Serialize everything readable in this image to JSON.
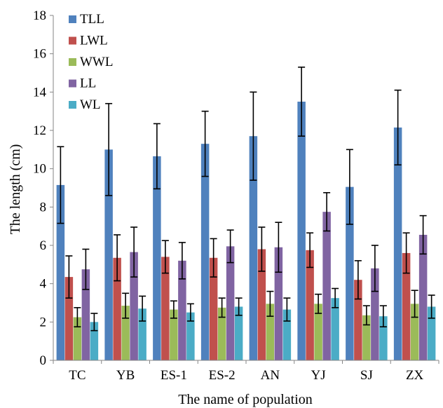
{
  "chart_data": {
    "type": "bar",
    "xlabel": "The name of population",
    "ylabel": "The length (cm)",
    "ylim": [
      0,
      18
    ],
    "yticks": [
      "0",
      "2",
      "4",
      "6",
      "8",
      "10",
      "12",
      "14",
      "16",
      "18"
    ],
    "grid": false,
    "legend_position": "top-left",
    "categories": [
      "TC",
      "YB",
      "ES-1",
      "ES-2",
      "AN",
      "YJ",
      "SJ",
      "ZX"
    ],
    "series": [
      {
        "name": "TLL",
        "color": "#4f81bd",
        "values": [
          9.15,
          11.0,
          10.65,
          11.3,
          11.7,
          13.5,
          9.05,
          12.15
        ],
        "errors": [
          2.0,
          2.4,
          1.7,
          1.7,
          2.3,
          1.8,
          1.95,
          1.95
        ]
      },
      {
        "name": "LWL",
        "color": "#c0504d",
        "values": [
          4.35,
          5.35,
          5.4,
          5.35,
          5.8,
          5.75,
          4.2,
          5.6
        ],
        "errors": [
          1.1,
          1.2,
          0.85,
          1.0,
          1.15,
          0.9,
          1.0,
          1.05
        ]
      },
      {
        "name": "WWL",
        "color": "#9bbb59",
        "values": [
          2.25,
          2.85,
          2.65,
          2.75,
          2.95,
          2.95,
          2.35,
          2.95
        ],
        "errors": [
          0.5,
          0.65,
          0.45,
          0.5,
          0.65,
          0.5,
          0.5,
          0.7
        ]
      },
      {
        "name": "LL",
        "color": "#8064a2",
        "values": [
          4.75,
          5.65,
          5.2,
          5.95,
          5.9,
          7.75,
          4.8,
          6.55
        ],
        "errors": [
          1.05,
          1.3,
          0.95,
          0.85,
          1.3,
          1.0,
          1.2,
          1.0
        ]
      },
      {
        "name": "WL",
        "color": "#4bacc6",
        "values": [
          2.0,
          2.7,
          2.5,
          2.8,
          2.65,
          3.25,
          2.3,
          2.8
        ],
        "errors": [
          0.45,
          0.65,
          0.45,
          0.45,
          0.6,
          0.5,
          0.55,
          0.6
        ]
      }
    ]
  }
}
